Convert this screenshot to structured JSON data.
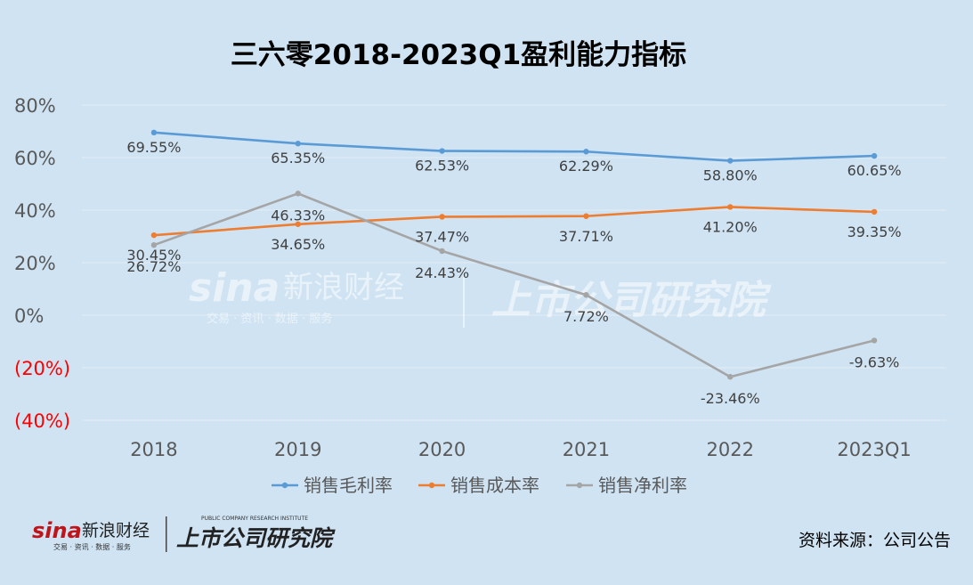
{
  "chart_data": {
    "type": "line",
    "title": "三六零2018-2023Q1盈利能力指标",
    "categories": [
      "2018",
      "2019",
      "2020",
      "2021",
      "2022",
      "2023Q1"
    ],
    "ylim": [
      -40,
      80
    ],
    "y_ticks": [
      {
        "value": 80,
        "label": "80%"
      },
      {
        "value": 60,
        "label": "60%"
      },
      {
        "value": 40,
        "label": "40%"
      },
      {
        "value": 20,
        "label": "20%"
      },
      {
        "value": 0,
        "label": "0%"
      },
      {
        "value": -20,
        "label": "(20%)"
      },
      {
        "value": -40,
        "label": "(40%)"
      }
    ],
    "grid": true,
    "legend_position": "bottom",
    "series": [
      {
        "name": "销售毛利率",
        "color": "#5b9bd5",
        "values": [
          69.55,
          65.35,
          62.53,
          62.29,
          58.8,
          60.65
        ],
        "labels": [
          "69.55%",
          "65.35%",
          "62.53%",
          "62.29%",
          "58.80%",
          "60.65%"
        ]
      },
      {
        "name": "销售成本率",
        "color": "#ed7d31",
        "values": [
          30.45,
          34.65,
          37.47,
          37.71,
          41.2,
          39.35
        ],
        "labels": [
          "30.45%",
          "34.65%",
          "37.47%",
          "37.71%",
          "41.20%",
          "39.35%"
        ]
      },
      {
        "name": "销售净利率",
        "color": "#a5a5a5",
        "values": [
          26.72,
          46.33,
          24.43,
          7.72,
          -23.46,
          -9.63
        ],
        "labels": [
          "26.72%",
          "46.33%",
          "24.43%",
          "7.72%",
          "-23.46%",
          "-9.63%"
        ]
      }
    ],
    "negative_tick_color": "#ff0000"
  },
  "footer": {
    "brand_sina": "sina",
    "brand_sina_cn": "新浪财经",
    "brand_sina_sub": "交易 · 资讯 · 数据 · 服务",
    "brand_institute": "上市公司研究院",
    "brand_institute_en": "PUBLIC COMPANY RESEARCH INSTITUTE",
    "source": "资料来源：公司公告"
  },
  "watermark": {
    "sina": "sina",
    "sina_cn": "新浪财经",
    "sina_sub": "交易 · 资讯 · 数据 · 服务",
    "institute": "上市公司研究院"
  }
}
